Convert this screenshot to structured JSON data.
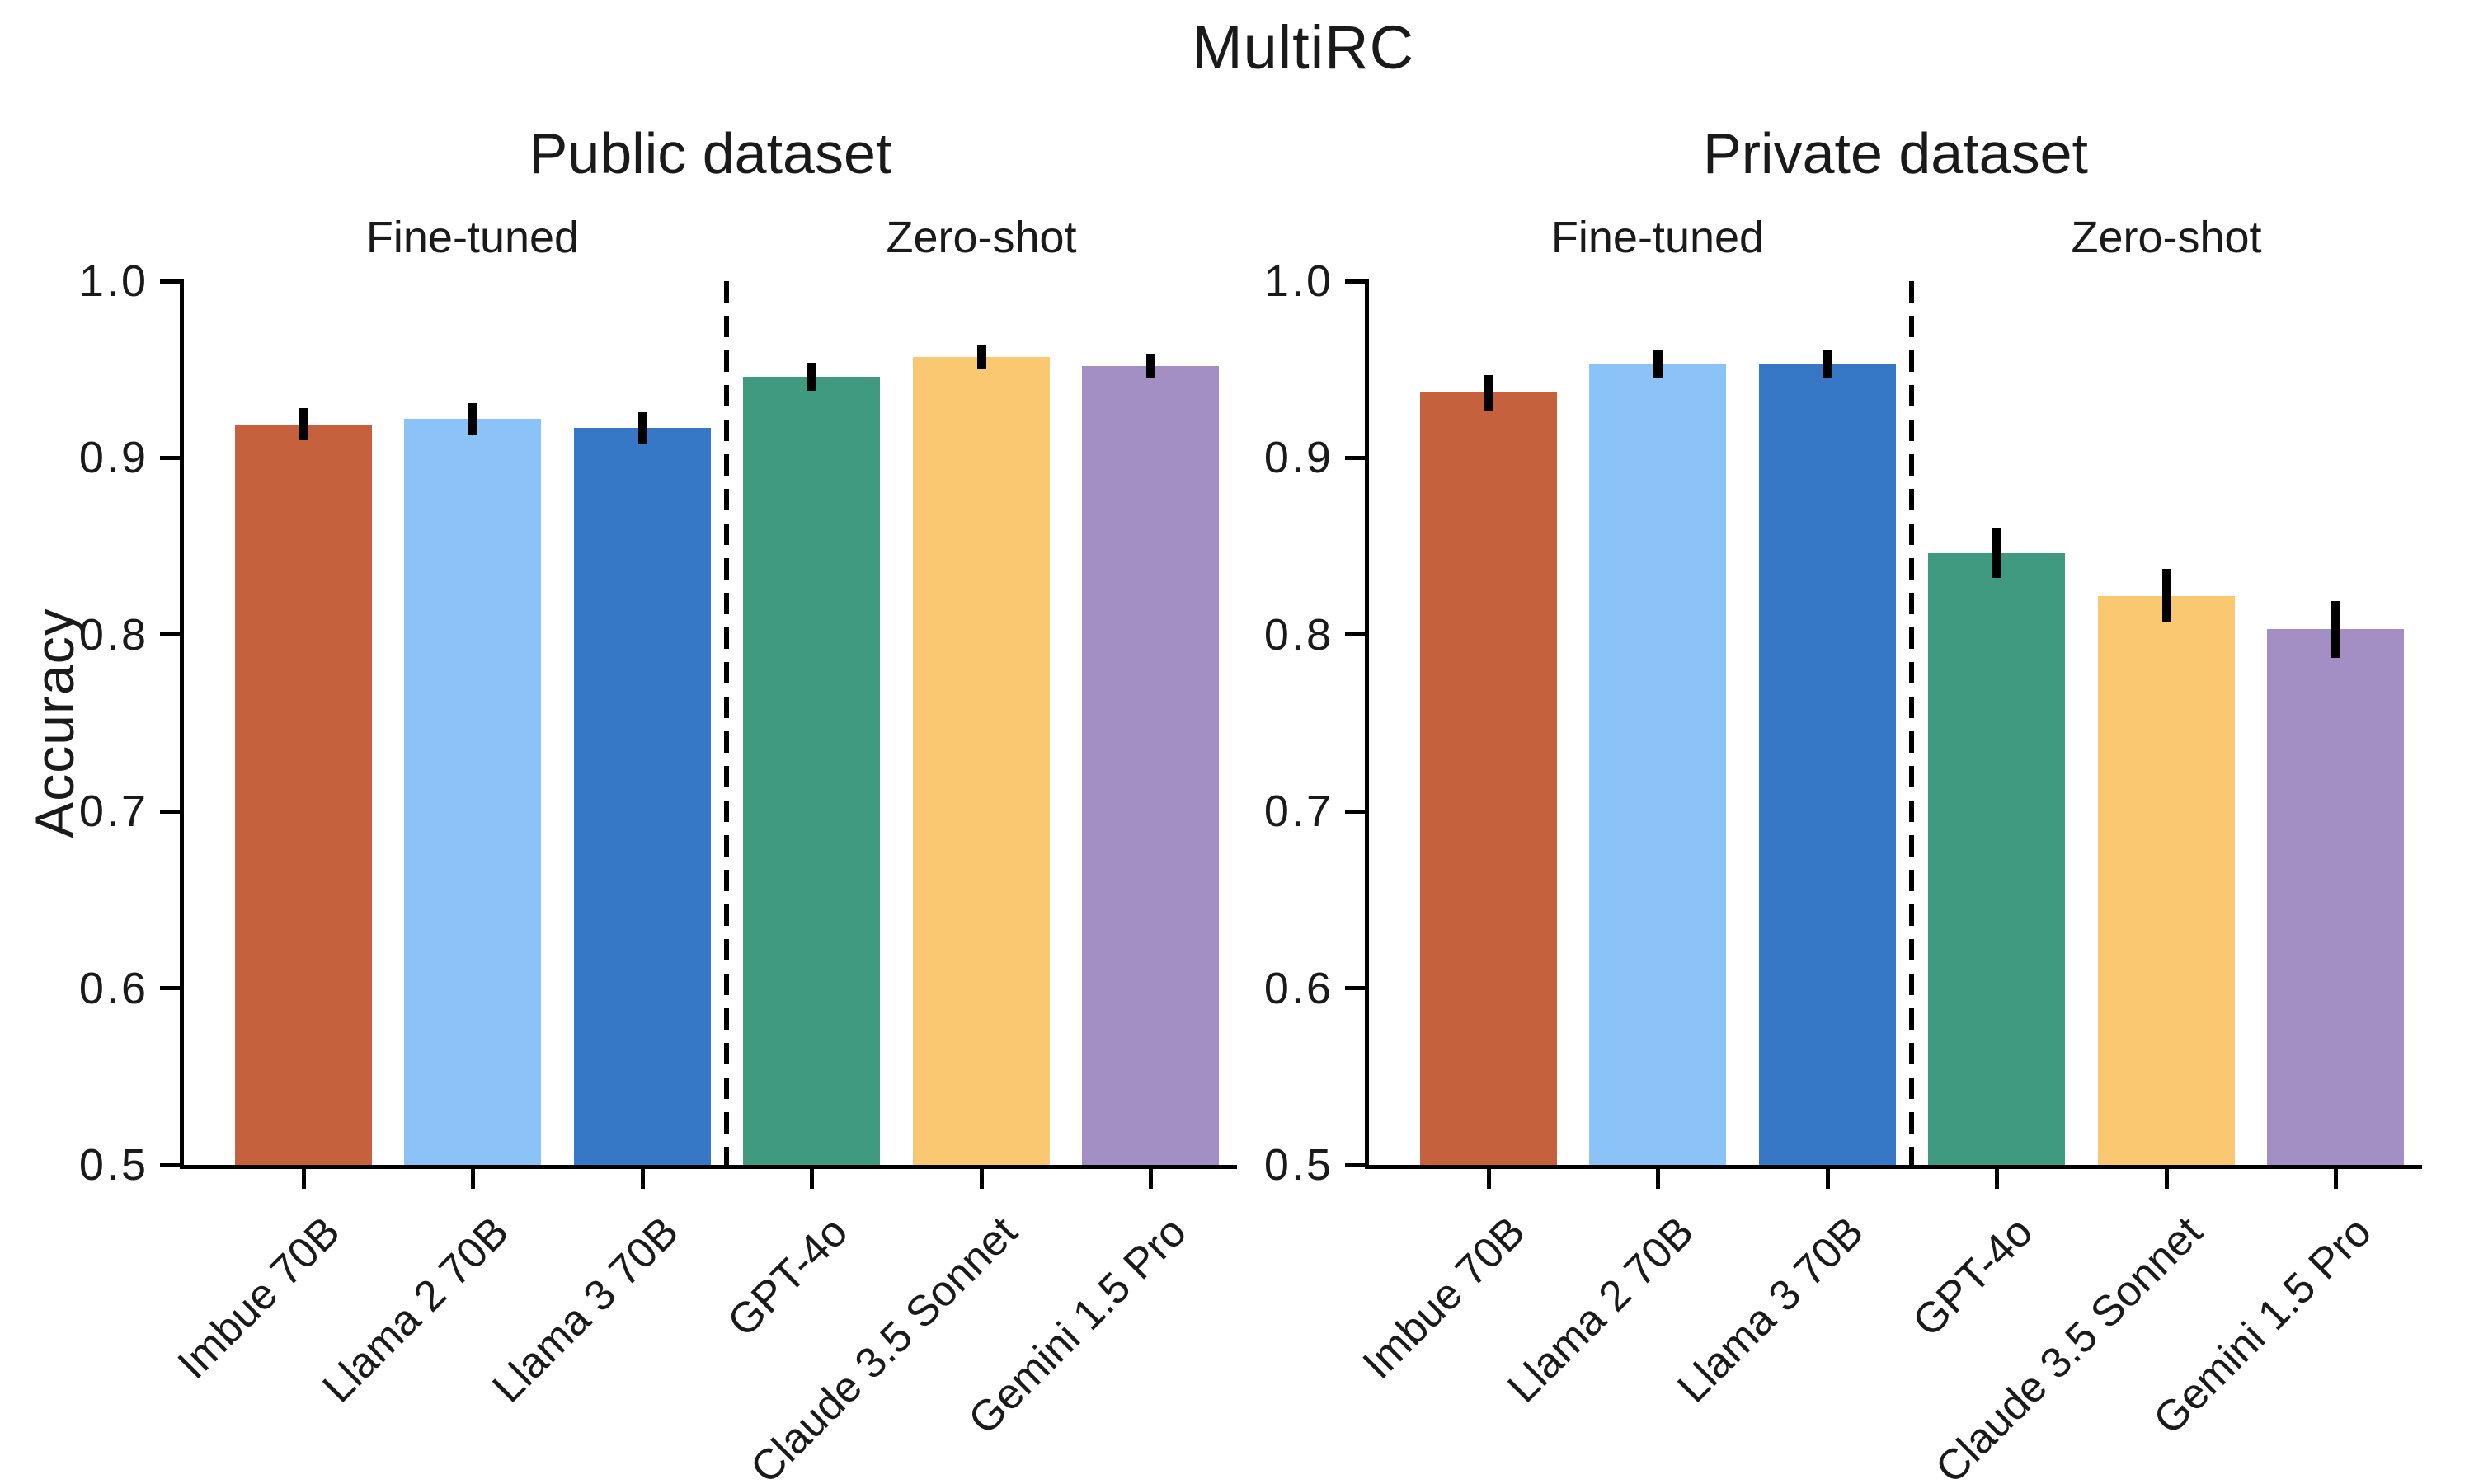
{
  "title": "MultiRC",
  "chart_data": {
    "type": "bar",
    "title": "MultiRC",
    "ylabel": "Accuracy",
    "ylim": [
      0.5,
      1.0
    ],
    "yticks": [
      "1.0",
      "0.9",
      "0.8",
      "0.7",
      "0.6",
      "0.5"
    ],
    "grid": false,
    "legend": false,
    "error_bars": true,
    "panels": [
      {
        "title": "Public dataset",
        "groups": [
          {
            "label": "Fine-tuned",
            "bars": [
              {
                "model": "Imbue 70B",
                "value": 0.919,
                "error": 0.009,
                "color": "#C5613C"
              },
              {
                "model": "Llama 2 70B",
                "value": 0.922,
                "error": 0.009,
                "color": "#8BC2F8"
              },
              {
                "model": "Llama 3 70B",
                "value": 0.917,
                "error": 0.009,
                "color": "#3678C5"
              }
            ]
          },
          {
            "label": "Zero-shot",
            "bars": [
              {
                "model": "GPT-4o",
                "value": 0.946,
                "error": 0.008,
                "color": "#3F9A80"
              },
              {
                "model": "Claude 3.5 Sonnet",
                "value": 0.957,
                "error": 0.007,
                "color": "#FAC871"
              },
              {
                "model": "Gemini 1.5 Pro",
                "value": 0.952,
                "error": 0.007,
                "color": "#A48FC4"
              }
            ]
          }
        ]
      },
      {
        "title": "Private dataset",
        "groups": [
          {
            "label": "Fine-tuned",
            "bars": [
              {
                "model": "Imbue 70B",
                "value": 0.937,
                "error": 0.01,
                "color": "#C5613C"
              },
              {
                "model": "Llama 2 70B",
                "value": 0.953,
                "error": 0.008,
                "color": "#8BC2F8"
              },
              {
                "model": "Llama 3 70B",
                "value": 0.953,
                "error": 0.008,
                "color": "#3678C5"
              }
            ]
          },
          {
            "label": "Zero-shot",
            "bars": [
              {
                "model": "GPT-4o",
                "value": 0.846,
                "error": 0.014,
                "color": "#3F9A80"
              },
              {
                "model": "Claude 3.5 Sonnet",
                "value": 0.822,
                "error": 0.015,
                "color": "#FAC871"
              },
              {
                "model": "Gemini 1.5 Pro",
                "value": 0.803,
                "error": 0.016,
                "color": "#A48FC4"
              }
            ]
          }
        ]
      }
    ]
  }
}
